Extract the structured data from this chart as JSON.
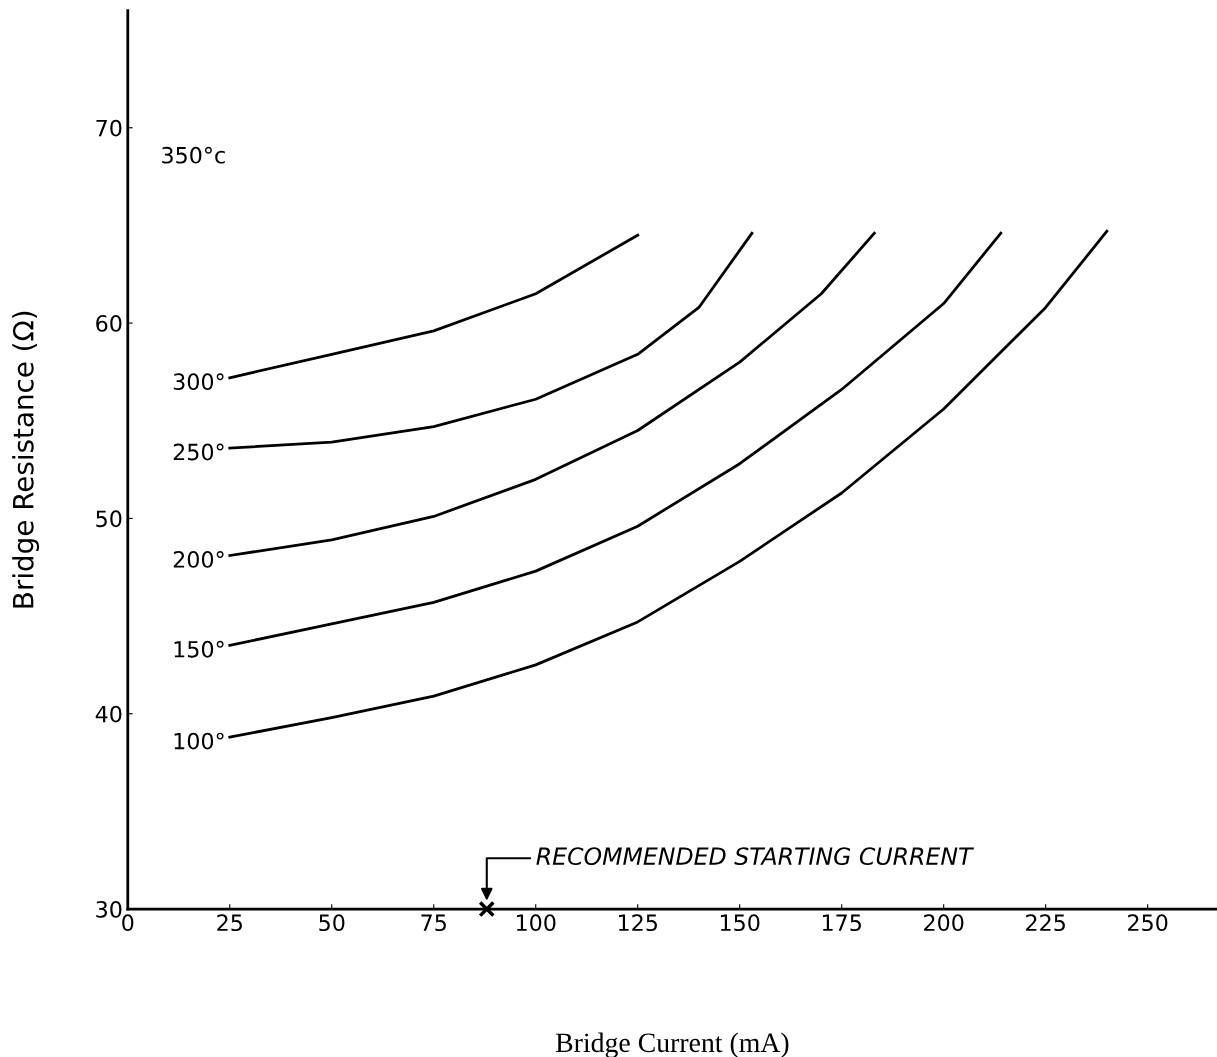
{
  "chart_data": {
    "type": "line",
    "xlabel": "Bridge Current (mA)",
    "ylabel": "Bridge Resistance (Ω)",
    "xlim": [
      0,
      267
    ],
    "ylim": [
      30,
      76
    ],
    "xticks": [
      0,
      25,
      50,
      75,
      100,
      125,
      150,
      175,
      200,
      225,
      250
    ],
    "yticks": [
      30,
      40,
      50,
      60,
      70
    ],
    "grid": false,
    "legend": false,
    "marker": "none",
    "line_style": "solid",
    "series": [
      {
        "name": "300°",
        "color": "#000000",
        "x": [
          25,
          50,
          75,
          100,
          125
        ],
        "values": [
          57.2,
          58.4,
          59.6,
          61.5,
          64.5
        ]
      },
      {
        "name": "250°",
        "color": "#000000",
        "x": [
          25,
          50,
          75,
          100,
          125,
          140,
          153
        ],
        "values": [
          53.6,
          53.9,
          54.7,
          56.1,
          58.4,
          60.8,
          64.6
        ]
      },
      {
        "name": "200°",
        "color": "#000000",
        "x": [
          25,
          50,
          75,
          100,
          125,
          150,
          170,
          183
        ],
        "values": [
          48.1,
          48.9,
          50.1,
          52.0,
          54.5,
          58.0,
          61.5,
          64.6
        ]
      },
      {
        "name": "150°",
        "color": "#000000",
        "x": [
          25,
          50,
          75,
          100,
          125,
          150,
          175,
          200,
          214
        ],
        "values": [
          43.5,
          44.6,
          45.7,
          47.3,
          49.6,
          52.8,
          56.6,
          61.0,
          64.6
        ]
      },
      {
        "name": "100°",
        "color": "#000000",
        "x": [
          25,
          50,
          75,
          100,
          125,
          150,
          175,
          200,
          225,
          240
        ],
        "values": [
          38.8,
          39.8,
          40.9,
          42.5,
          44.7,
          47.8,
          51.3,
          55.6,
          60.8,
          64.7
        ]
      },
      {
        "type": "scatter",
        "marker": "cross",
        "color": "#000000",
        "x": [
          88
        ],
        "values": [
          30
        ]
      }
    ],
    "annotations": [
      "350°c",
      {
        "text": "RECOMMENDED STARTING CURRENT",
        "x": 88,
        "y": 30
      }
    ]
  }
}
